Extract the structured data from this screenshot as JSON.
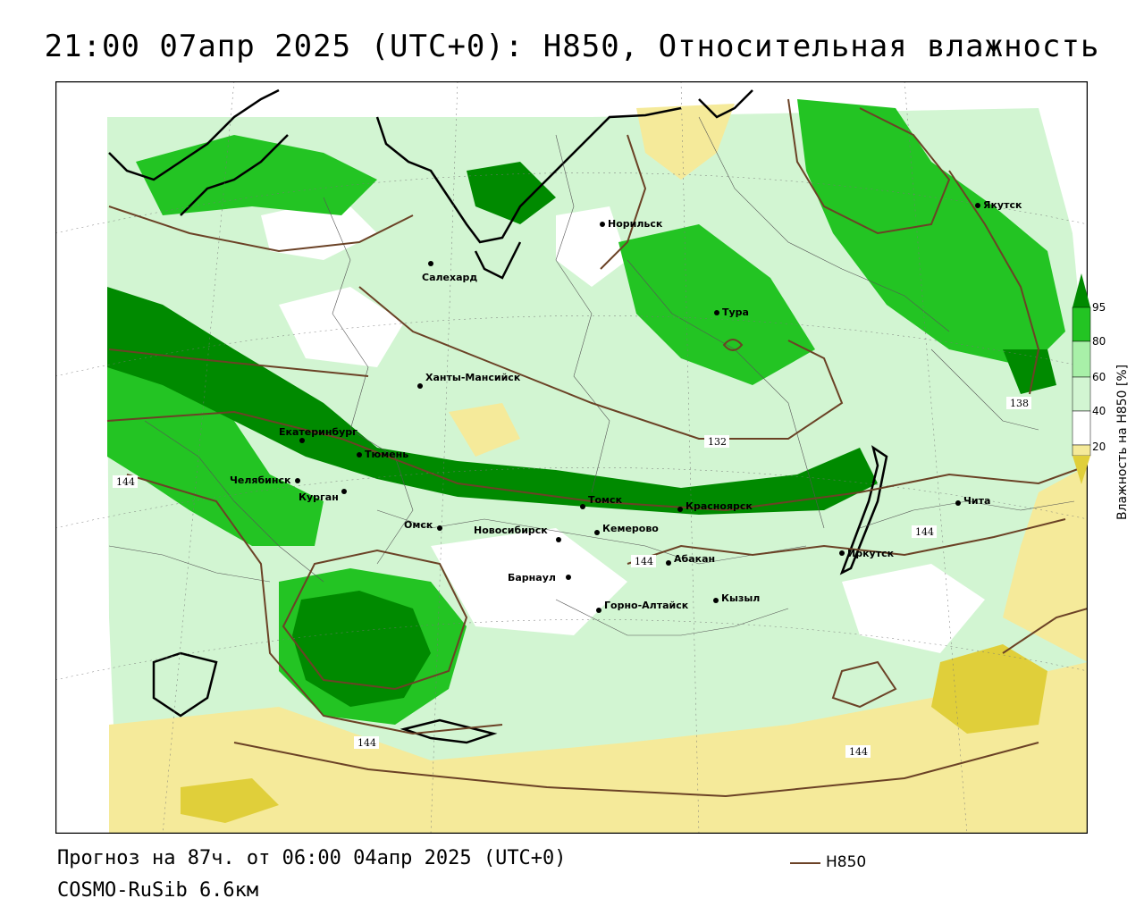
{
  "title": "21:00 07апр 2025 (UTC+0): H850, Относительная влажность",
  "footer": {
    "forecast": "Прогноз на 87ч. от 06:00 04апр 2025 (UTC+0)",
    "model": "COSMO-RuSib 6.6км"
  },
  "legend": {
    "line_label": "H850",
    "line_color": "#6b4226"
  },
  "colorbar": {
    "title": "Влажность на H850 [%]",
    "ticks": [
      "95",
      "80",
      "60",
      "40",
      "20"
    ],
    "colors": {
      "c95": "#008a00",
      "c80": "#23c423",
      "c60": "#a8f0a8",
      "c40": "#ffffff",
      "c20": "#f5ea9a",
      "c0": "#e0cf3a"
    }
  },
  "cities": [
    {
      "name": "Норильск"
    },
    {
      "name": "Якутск"
    },
    {
      "name": "Салехард"
    },
    {
      "name": "Тура"
    },
    {
      "name": "Ханты-Мансийск"
    },
    {
      "name": "Екатеринбург"
    },
    {
      "name": "Тюмень"
    },
    {
      "name": "Челябинск"
    },
    {
      "name": "Курган"
    },
    {
      "name": "Омск"
    },
    {
      "name": "Новосибирск"
    },
    {
      "name": "Томск"
    },
    {
      "name": "Кемерово"
    },
    {
      "name": "Красноярск"
    },
    {
      "name": "Абакан"
    },
    {
      "name": "Барнаул"
    },
    {
      "name": "Горно-Алтайск"
    },
    {
      "name": "Кызыл"
    },
    {
      "name": "Иркутск"
    },
    {
      "name": "Чита"
    }
  ],
  "isoline_labels": [
    "132",
    "138",
    "144",
    "144",
    "144",
    "144",
    "144"
  ]
}
